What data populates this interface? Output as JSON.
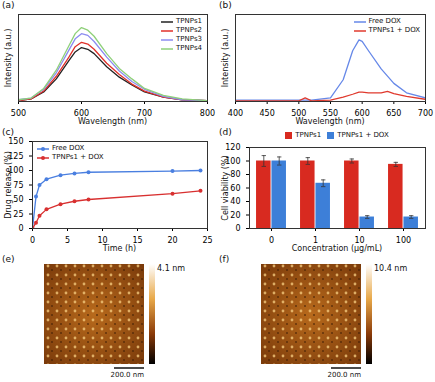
{
  "chart_data": [
    {
      "panel_label": "(a)",
      "type": "line",
      "xlabel": "Wavelength (nm)",
      "ylabel": "Intensity (a.u.)",
      "x": [
        500,
        520,
        540,
        560,
        580,
        590,
        600,
        610,
        620,
        640,
        660,
        680,
        700,
        730,
        760,
        800
      ],
      "series": [
        {
          "name": "TPNPs1",
          "color": "#222222",
          "values": [
            0.01,
            0.03,
            0.11,
            0.26,
            0.47,
            0.57,
            0.62,
            0.6,
            0.55,
            0.4,
            0.28,
            0.19,
            0.11,
            0.05,
            0.02,
            0.01
          ]
        },
        {
          "name": "TPNPs2",
          "color": "#e0312a",
          "values": [
            0.01,
            0.03,
            0.12,
            0.29,
            0.51,
            0.63,
            0.68,
            0.66,
            0.6,
            0.44,
            0.31,
            0.2,
            0.12,
            0.05,
            0.02,
            0.01
          ]
        },
        {
          "name": "TPNPs3",
          "color": "#8c8cf0",
          "values": [
            0.02,
            0.04,
            0.14,
            0.33,
            0.59,
            0.72,
            0.78,
            0.76,
            0.69,
            0.51,
            0.35,
            0.23,
            0.14,
            0.06,
            0.02,
            0.01
          ]
        },
        {
          "name": "TPNPs4",
          "color": "#8fd07a",
          "values": [
            0.02,
            0.04,
            0.15,
            0.36,
            0.64,
            0.78,
            0.85,
            0.82,
            0.75,
            0.55,
            0.38,
            0.26,
            0.15,
            0.07,
            0.03,
            0.01
          ]
        }
      ],
      "xlim": [
        500,
        800
      ],
      "xticks": [
        500,
        600,
        700,
        800
      ],
      "ylim": [
        0,
        1
      ],
      "tick_labels": "x",
      "legend": "top-right"
    },
    {
      "panel_label": "(b)",
      "type": "line",
      "xlabel": "Wavelength (nm)",
      "ylabel": "Intensity (a.u.)",
      "x": [
        400,
        450,
        500,
        510,
        520,
        550,
        570,
        585,
        595,
        600,
        610,
        630,
        640,
        650,
        670,
        700
      ],
      "series": [
        {
          "name": "Free DOX",
          "color": "#6688e8",
          "values": [
            0.02,
            0.02,
            0.02,
            0.02,
            0.02,
            0.05,
            0.3,
            0.7,
            0.85,
            0.83,
            0.7,
            0.45,
            0.35,
            0.25,
            0.12,
            0.05
          ]
        },
        {
          "name": "TPNPs1 + DOX",
          "color": "#e03a2e",
          "values": [
            0.01,
            0.01,
            0.01,
            0.05,
            0.01,
            0.02,
            0.06,
            0.1,
            0.13,
            0.13,
            0.12,
            0.12,
            0.14,
            0.11,
            0.07,
            0.03
          ]
        }
      ],
      "xlim": [
        400,
        700
      ],
      "xticks": [
        400,
        450,
        500,
        550,
        600,
        650,
        700
      ],
      "ylim": [
        0,
        1.2
      ],
      "tick_labels": "x",
      "legend": "top-right"
    },
    {
      "panel_label": "(c)",
      "type": "line",
      "xlabel": "Time (h)",
      "ylabel": "Drug release (%)",
      "x": [
        0,
        0.5,
        1,
        2,
        4,
        6,
        8,
        20,
        24
      ],
      "series": [
        {
          "name": "Free DOX",
          "color": "#4a7fe0",
          "marker": "circle",
          "values": [
            0,
            55,
            75,
            85,
            92,
            95,
            97,
            99,
            100
          ]
        },
        {
          "name": "TPNPs1 + DOX",
          "color": "#d83030",
          "marker": "circle",
          "values": [
            0,
            10,
            22,
            33,
            42,
            47,
            50,
            60,
            65
          ]
        }
      ],
      "xlim": [
        0,
        25
      ],
      "xticks": [
        0,
        5,
        10,
        15,
        20,
        25
      ],
      "ylim": [
        0,
        150
      ],
      "yticks": [
        0,
        25,
        50,
        75,
        100,
        125,
        150
      ],
      "legend": "top-left"
    },
    {
      "panel_label": "(d)",
      "type": "bar",
      "xlabel": "Concentration (μg/mL)",
      "ylabel": "Cell viability (%)",
      "categories": [
        "0",
        "1",
        "10",
        "100"
      ],
      "series": [
        {
          "name": "TPNPs1",
          "color": "#d82a20",
          "values": [
            100,
            100,
            100,
            95
          ],
          "errors": [
            8,
            5,
            3,
            3
          ]
        },
        {
          "name": "TPNPs1 + DOX",
          "color": "#3d7fd8",
          "values": [
            100,
            67,
            17,
            17
          ],
          "errors": [
            6,
            5,
            2,
            2
          ]
        }
      ],
      "ylim": [
        0,
        120
      ],
      "yticks": [
        0,
        20,
        40,
        60,
        80,
        100,
        120
      ],
      "legend": "top"
    },
    {
      "panel_label": "(e)",
      "type": "image",
      "colorbar_label": "4.1 nm",
      "scale_bar_label": "200.0 nm"
    },
    {
      "panel_label": "(f)",
      "type": "image",
      "colorbar_label": "10.4 nm",
      "scale_bar_label": "200.0 nm"
    }
  ]
}
